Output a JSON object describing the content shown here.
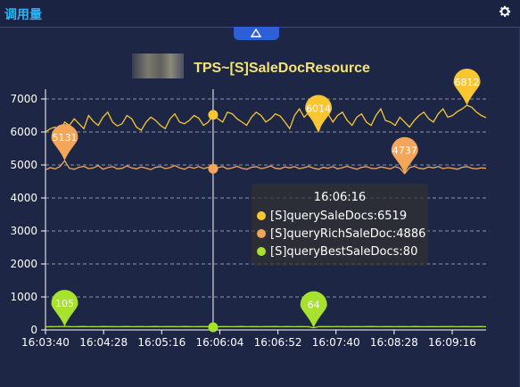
{
  "panel": {
    "title": "调用量",
    "gear_icon": "gear-icon",
    "collapse_icon": "triangle-up-icon"
  },
  "colors": {
    "background": "#1d2745",
    "title": "#29b6f6",
    "series1": "#f7c631",
    "series2": "#f3a65a",
    "series3": "#a6e22e",
    "axis": "#ffffff",
    "grid": "#8c93ab"
  },
  "chart_data": {
    "type": "line",
    "title": "TPS~[S]SaleDocResource",
    "ylim": [
      0,
      7000
    ],
    "yticks": [
      0,
      1000,
      2000,
      3000,
      4000,
      5000,
      6000,
      7000
    ],
    "xrange": [
      "16:03:40",
      "16:09:44"
    ],
    "xticks": [
      "16:03:40",
      "16:04:28",
      "16:05:16",
      "16:06:04",
      "16:06:52",
      "16:07:40",
      "16:08:28",
      "16:09:16"
    ],
    "grid": true,
    "series": [
      {
        "name": "[S]querySaleDocs",
        "color": "#f7c631",
        "values": [
          6000,
          6100,
          6150,
          5980,
          6300,
          6200,
          6400,
          6250,
          6100,
          6500,
          6320,
          6200,
          6450,
          6600,
          6300,
          6180,
          6250,
          6500,
          6400,
          6150,
          6050,
          6300,
          6450,
          6350,
          6200,
          6100,
          6400,
          6550,
          6300,
          6250,
          6350,
          6500,
          6420,
          6200,
          6300,
          6519,
          6400,
          6300,
          6600,
          6550,
          6400,
          6300,
          6200,
          6450,
          6600,
          6500,
          6300,
          6400,
          6550,
          6480,
          6300,
          6100,
          6500,
          6700,
          6450,
          6600,
          6300,
          6014,
          6400,
          6550,
          6300,
          6500,
          6600,
          6350,
          6200,
          6450,
          6550,
          6300,
          6200,
          6500,
          6700,
          6350,
          6300,
          6200,
          6450,
          6300,
          6150,
          6350,
          6500,
          6600,
          6400,
          6300,
          6550,
          6700,
          6450,
          6500,
          6620,
          6700,
          6812,
          6750,
          6600,
          6500,
          6430
        ]
      },
      {
        "name": "[S]queryRichSaleDoc",
        "color": "#f3a65a",
        "values": [
          4850,
          4920,
          4880,
          4950,
          5131,
          4900,
          4870,
          4930,
          4960,
          4890,
          4910,
          4980,
          4870,
          4920,
          4950,
          4880,
          4900,
          4970,
          4910,
          4880,
          4940,
          4900,
          4860,
          4930,
          4950,
          4890,
          4920,
          4980,
          4910,
          4870,
          4940,
          4900,
          4950,
          4890,
          4930,
          4886,
          4920,
          4950,
          4880,
          4910,
          4960,
          4900,
          4870,
          4930,
          4950,
          4890,
          4920,
          4970,
          4900,
          4880,
          4940,
          4910,
          4950,
          4890,
          4920,
          4960,
          4900,
          4870,
          4930,
          4900,
          4950,
          4880,
          4920,
          4960,
          4910,
          4870,
          4930,
          4950,
          4900,
          4890,
          4940,
          4910,
          4880,
          4950,
          4900,
          4737,
          4920,
          4960,
          4900,
          4880,
          4940,
          4910,
          4950,
          4890,
          4920,
          4900,
          4870,
          4930,
          4950,
          4900,
          4880,
          4910,
          4900
        ]
      },
      {
        "name": "[S]queryBestSaleDocs",
        "color": "#a6e22e",
        "values": [
          95,
          100,
          98,
          102,
          105,
          99,
          97,
          101,
          103,
          98,
          100,
          96,
          102,
          99,
          101,
          97,
          100,
          103,
          98,
          99,
          101,
          97,
          100,
          102,
          98,
          99,
          101,
          100,
          97,
          102,
          99,
          98,
          101,
          100,
          99,
          80,
          98,
          101,
          100,
          97,
          99,
          102,
          98,
          100,
          101,
          97,
          99,
          100,
          102,
          98,
          99,
          101,
          97,
          100,
          99,
          98,
          64,
          99,
          101,
          100,
          97,
          102,
          99,
          98,
          100,
          101,
          97,
          99,
          102,
          100,
          98,
          99,
          101,
          97,
          100,
          99,
          98,
          102,
          100,
          97,
          99,
          101,
          98,
          100,
          99,
          102,
          97,
          100,
          101,
          98,
          99,
          100,
          98
        ]
      }
    ],
    "markers": [
      {
        "series": 0,
        "label": "6014",
        "index": 57,
        "value": 6014
      },
      {
        "series": 0,
        "label": "6812",
        "index": 88,
        "value": 6812
      },
      {
        "series": 1,
        "label": "5131",
        "index": 4,
        "value": 5131
      },
      {
        "series": 1,
        "label": "4737",
        "index": 75,
        "value": 4737
      },
      {
        "series": 2,
        "label": "105",
        "index": 4,
        "value": 105
      },
      {
        "series": 2,
        "label": "64",
        "index": 56,
        "value": 64
      }
    ],
    "cursor_index": 35,
    "tooltip": {
      "time": "16:06:16",
      "rows": [
        {
          "text": "[S]querySaleDocs:6519",
          "color": "#f7c631"
        },
        {
          "text": "[S]queryRichSaleDoc:4886",
          "color": "#f3a65a"
        },
        {
          "text": "[S]queryBestSaleDocs:80",
          "color": "#a6e22e"
        }
      ]
    }
  }
}
